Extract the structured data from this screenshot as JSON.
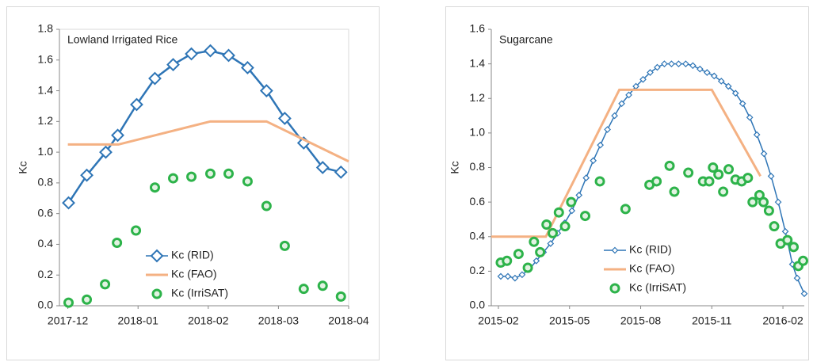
{
  "chart_data": [
    {
      "type": "line",
      "annotation": "Lowland Irrigated Rice",
      "ylabel": "Kc",
      "xlim": [
        -0.12,
        4.0
      ],
      "ylim": [
        0,
        1.8
      ],
      "xticks": [
        {
          "value": 0,
          "label": "2017-12"
        },
        {
          "value": 1,
          "label": "2018-01"
        },
        {
          "value": 2,
          "label": "2018-02"
        },
        {
          "value": 3,
          "label": "2018-03"
        },
        {
          "value": 4,
          "label": "2018-04"
        }
      ],
      "yticks": [
        {
          "value": 0,
          "label": "0.0"
        },
        0.2,
        0.4,
        0.6,
        0.8,
        {
          "value": 1,
          "label": "1.0"
        },
        1.2,
        1.4,
        1.6,
        1.8
      ],
      "grid": false,
      "legend_position": "lower center",
      "series": [
        {
          "name": "Kc (RID)",
          "color": "#2e75b6",
          "marker": "diamond",
          "line": true,
          "x": [
            0.01,
            0.27,
            0.54,
            0.71,
            0.98,
            1.24,
            1.5,
            1.76,
            2.03,
            2.29,
            2.56,
            2.83,
            3.09,
            3.36,
            3.63,
            3.89
          ],
          "values": [
            0.67,
            0.85,
            1.0,
            1.11,
            1.31,
            1.48,
            1.57,
            1.64,
            1.66,
            1.63,
            1.55,
            1.4,
            1.22,
            1.06,
            0.9,
            0.87
          ]
        },
        {
          "name": "Kc (FAO)",
          "color": "#f4b183",
          "marker": "none",
          "line": true,
          "x": [
            0,
            0.72,
            2.03,
            2.83,
            4.0
          ],
          "values": [
            1.05,
            1.05,
            1.2,
            1.2,
            0.94
          ]
        },
        {
          "name": "Kc (IrriSAT)",
          "color": "#2db34a",
          "marker": "circle",
          "line": false,
          "x": [
            0.01,
            0.27,
            0.53,
            0.7,
            0.97,
            1.24,
            1.5,
            1.76,
            2.03,
            2.29,
            2.56,
            2.83,
            3.09,
            3.36,
            3.63,
            3.89
          ],
          "values": [
            0.02,
            0.04,
            0.14,
            0.41,
            0.49,
            0.77,
            0.83,
            0.84,
            0.86,
            0.86,
            0.81,
            0.65,
            0.39,
            0.11,
            0.13,
            0.06
          ]
        }
      ]
    },
    {
      "type": "line",
      "annotation": "Sugarcane",
      "ylabel": "Kc",
      "xlim": [
        -0.3,
        12.9
      ],
      "ylim": [
        0,
        1.6
      ],
      "xticks": [
        {
          "value": 0,
          "label": "2015-02"
        },
        {
          "value": 3,
          "label": "2015-05"
        },
        {
          "value": 6,
          "label": "2015-08"
        },
        {
          "value": 9,
          "label": "2015-11"
        },
        {
          "value": 12,
          "label": "2016-02"
        }
      ],
      "yticks": [
        {
          "value": 0,
          "label": "0.0"
        },
        0.2,
        0.4,
        0.6,
        0.8,
        {
          "value": 1,
          "label": "1.0"
        },
        1.2,
        1.4,
        1.6
      ],
      "grid": false,
      "legend_position": "lower center",
      "series": [
        {
          "name": "Kc (RID)",
          "color": "#2e75b6",
          "marker": "diamond-small",
          "line": true,
          "x": [
            0.1,
            0.4,
            0.7,
            1.0,
            1.3,
            1.6,
            1.9,
            2.2,
            2.5,
            2.8,
            3.1,
            3.4,
            3.7,
            4.0,
            4.3,
            4.6,
            4.9,
            5.2,
            5.5,
            5.8,
            6.1,
            6.4,
            6.7,
            7.0,
            7.3,
            7.6,
            7.9,
            8.2,
            8.5,
            8.8,
            9.1,
            9.4,
            9.7,
            10.0,
            10.3,
            10.6,
            10.9,
            11.2,
            11.5,
            11.8,
            12.1,
            12.4,
            12.6,
            12.9
          ],
          "values": [
            0.17,
            0.17,
            0.16,
            0.18,
            0.21,
            0.26,
            0.31,
            0.36,
            0.42,
            0.48,
            0.55,
            0.64,
            0.74,
            0.84,
            0.93,
            1.02,
            1.1,
            1.17,
            1.22,
            1.27,
            1.31,
            1.35,
            1.38,
            1.4,
            1.4,
            1.4,
            1.4,
            1.39,
            1.37,
            1.35,
            1.33,
            1.3,
            1.27,
            1.23,
            1.17,
            1.09,
            0.99,
            0.88,
            0.75,
            0.6,
            0.43,
            0.24,
            0.16,
            0.07
          ]
        },
        {
          "name": "Kc (FAO)",
          "color": "#f4b183",
          "marker": "none",
          "line": true,
          "x": [
            -0.3,
            2.0,
            5.1,
            9.0,
            11.05
          ],
          "values": [
            0.4,
            0.4,
            1.25,
            1.25,
            0.75
          ]
        },
        {
          "name": "Kc (IrriSAT)",
          "color": "#2db34a",
          "marker": "circle",
          "line": false,
          "x": [
            0.1,
            0.36,
            0.85,
            1.24,
            1.5,
            1.76,
            2.03,
            2.29,
            2.55,
            2.81,
            3.07,
            3.66,
            4.28,
            5.36,
            6.37,
            6.67,
            7.22,
            7.42,
            8.01,
            8.63,
            8.89,
            9.05,
            9.28,
            9.48,
            9.71,
            10.0,
            10.26,
            10.52,
            10.72,
            11.01,
            11.18,
            11.41,
            11.63,
            11.9,
            12.19,
            12.45,
            12.65,
            12.85
          ],
          "values": [
            0.25,
            0.26,
            0.3,
            0.22,
            0.37,
            0.31,
            0.47,
            0.42,
            0.54,
            0.46,
            0.6,
            0.52,
            0.72,
            0.56,
            0.7,
            0.72,
            0.81,
            0.66,
            0.77,
            0.72,
            0.72,
            0.8,
            0.76,
            0.66,
            0.79,
            0.73,
            0.72,
            0.74,
            0.6,
            0.64,
            0.6,
            0.55,
            0.46,
            0.36,
            0.38,
            0.34,
            0.23,
            0.26
          ]
        }
      ]
    }
  ]
}
